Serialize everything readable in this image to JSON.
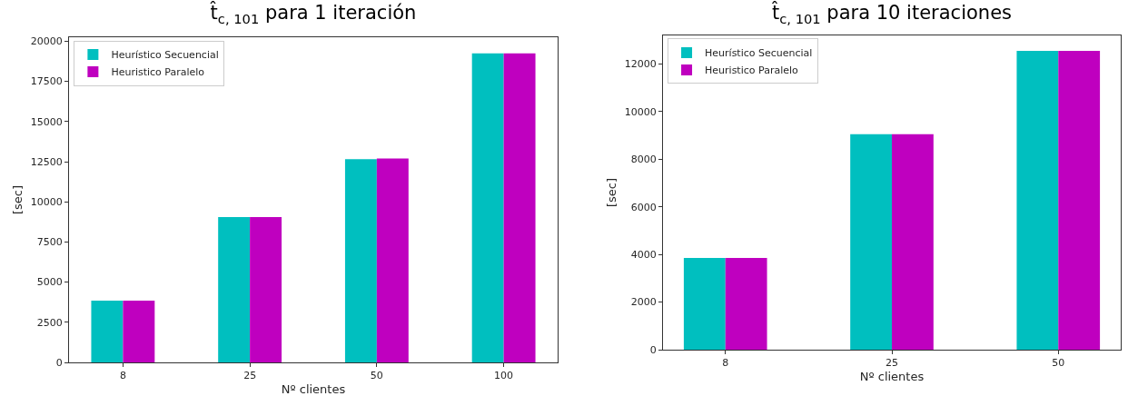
{
  "chart_data": [
    {
      "type": "bar",
      "title": "t̂$_{c, 101}$ para 1 iteración",
      "xlabel": "Nº clientes",
      "ylabel": "[sec]",
      "categories": [
        "8",
        "25",
        "50",
        "100"
      ],
      "series": [
        {
          "name": "Heurístico Secuencial",
          "color": "#00bfbf",
          "values": [
            3850,
            9050,
            12650,
            19250
          ]
        },
        {
          "name": "Heuristico Paralelo",
          "color": "#bf00bf",
          "values": [
            3850,
            9050,
            12700,
            19250
          ]
        }
      ],
      "ylim": [
        0,
        20250
      ],
      "yticks": [
        0,
        2500,
        5000,
        7500,
        10000,
        12500,
        15000,
        17500,
        20000
      ],
      "grid": false,
      "legend": "top left"
    },
    {
      "type": "bar",
      "title": "t̂$_{c, 101}$ para 10 iteraciones",
      "xlabel": "Nº clientes",
      "ylabel": "[sec]",
      "categories": [
        "8",
        "25",
        "50"
      ],
      "series": [
        {
          "name": "Heurístico Secuencial",
          "color": "#00bfbf",
          "values": [
            3850,
            9050,
            12550
          ]
        },
        {
          "name": "Heuristico Paralelo",
          "color": "#bf00bf",
          "values": [
            3850,
            9050,
            12550
          ]
        }
      ],
      "ylim": [
        0,
        13200
      ],
      "yticks": [
        0,
        2000,
        4000,
        6000,
        8000,
        10000,
        12000
      ],
      "grid": false,
      "legend": "top left"
    }
  ]
}
